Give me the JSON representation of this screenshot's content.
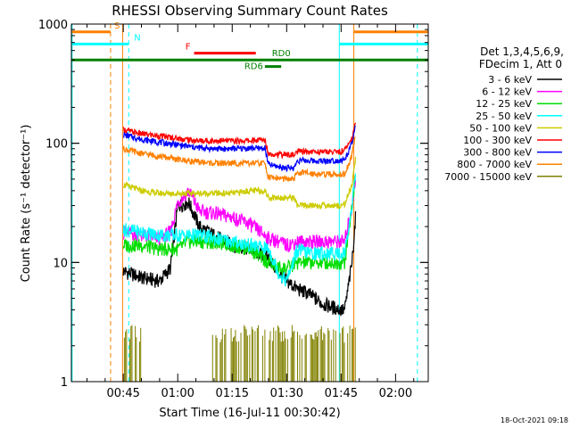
{
  "chart_data": {
    "type": "line",
    "title": "RHESSI Observing Summary Count Rates",
    "xlabel": "Start Time (16-Jul-11 00:30:42)",
    "ylabel": "Count Rate (s⁻¹ detector⁻¹)",
    "yscale": "log",
    "ylim": [
      1,
      1000
    ],
    "xlim_minutes": [
      30.7,
      129.0
    ],
    "x_tick_labels": [
      "00:45",
      "01:00",
      "01:15",
      "01:30",
      "01:45",
      "02:00"
    ],
    "x_tick_minutes": [
      45,
      60,
      75,
      90,
      105,
      120
    ],
    "y_tick_labels": [
      "1",
      "10",
      "100",
      "1000"
    ],
    "y_tick_values": [
      1,
      10,
      100,
      1000
    ],
    "legend_header": [
      "Det 1,3,4,5,6,9,",
      "FDecim 1, Att 0"
    ],
    "timestamp": "18-Oct-2021 09:18",
    "series": [
      {
        "name": "3 - 6 keV",
        "color": "#000000",
        "x": [
          45,
          50,
          55,
          58,
          60,
          63,
          66,
          70,
          75,
          80,
          85,
          88,
          90,
          93,
          96,
          100,
          105,
          106,
          108,
          109
        ],
        "y": [
          8.5,
          7.5,
          7.0,
          9.0,
          30,
          32,
          20,
          17,
          14,
          13,
          11,
          8,
          7,
          6,
          5.5,
          4.5,
          4.0,
          4.0,
          10,
          25
        ]
      },
      {
        "name": "6 - 12 keV",
        "color": "#ff00ff",
        "x": [
          45,
          50,
          55,
          58,
          60,
          63,
          66,
          70,
          75,
          80,
          85,
          88,
          90,
          93,
          96,
          100,
          105,
          106,
          108,
          109
        ],
        "y": [
          18,
          17,
          16,
          18,
          32,
          40,
          27,
          26,
          24,
          21,
          16,
          15,
          14,
          15,
          15,
          15,
          15,
          15,
          30,
          50
        ]
      },
      {
        "name": "12 - 25 keV",
        "color": "#00dd00",
        "x": [
          45,
          50,
          55,
          58,
          60,
          63,
          66,
          70,
          75,
          80,
          85,
          88,
          90,
          93,
          96,
          100,
          105,
          106,
          108,
          109
        ],
        "y": [
          14,
          14,
          13,
          13,
          13,
          15,
          15,
          15,
          14,
          13,
          10,
          9,
          9,
          10,
          10,
          10,
          10,
          10,
          30,
          55
        ]
      },
      {
        "name": "25 - 50 keV",
        "color": "#00ffff",
        "x": [
          45,
          50,
          55,
          58,
          60,
          63,
          66,
          70,
          75,
          80,
          85,
          88,
          90,
          93,
          96,
          100,
          105,
          106,
          108,
          109
        ],
        "y": [
          19,
          18,
          17,
          17,
          17,
          17,
          17,
          16,
          15,
          14,
          13,
          8,
          7,
          13,
          12,
          12,
          12,
          12,
          30,
          58
        ]
      },
      {
        "name": "50 - 100 keV",
        "color": "#cccc00",
        "x": [
          45,
          50,
          55,
          60,
          65,
          70,
          75,
          80,
          84,
          85,
          90,
          92,
          93,
          100,
          105,
          106,
          108,
          109
        ],
        "y": [
          45,
          40,
          38,
          38,
          38,
          38,
          38,
          40,
          40,
          35,
          35,
          35,
          30,
          30,
          30,
          31,
          45,
          75
        ]
      },
      {
        "name": "100 - 300 keV",
        "color": "#ff0000",
        "x": [
          45,
          50,
          55,
          60,
          65,
          70,
          75,
          80,
          84,
          85,
          90,
          92,
          93,
          100,
          105,
          106,
          108,
          109
        ],
        "y": [
          130,
          120,
          115,
          110,
          105,
          105,
          105,
          105,
          107,
          82,
          80,
          80,
          85,
          85,
          85,
          88,
          110,
          150
        ]
      },
      {
        "name": "300 - 800 keV",
        "color": "#0000ff",
        "x": [
          45,
          50,
          55,
          60,
          65,
          70,
          75,
          80,
          84,
          85,
          90,
          92,
          93,
          100,
          105,
          106,
          108,
          109
        ],
        "y": [
          118,
          108,
          102,
          97,
          92,
          90,
          90,
          91,
          91,
          66,
          62,
          62,
          72,
          71,
          72,
          72,
          100,
          140
        ]
      },
      {
        "name": "800 - 7000 keV",
        "color": "#ff8000",
        "x": [
          45,
          50,
          55,
          60,
          65,
          70,
          75,
          80,
          84,
          85,
          90,
          92,
          93,
          100,
          105,
          106,
          108,
          109
        ],
        "y": [
          90,
          82,
          78,
          73,
          70,
          68,
          68,
          68,
          68,
          52,
          50,
          50,
          57,
          55,
          55,
          55,
          80,
          120
        ]
      },
      {
        "name": "7000 - 15000 keV",
        "color": "#808000",
        "x": [
          45,
          46,
          47,
          48,
          49,
          50,
          69,
          72,
          75,
          78,
          80,
          82,
          85,
          86,
          88,
          90,
          92,
          93,
          95,
          97,
          100,
          102,
          104,
          106,
          107,
          108,
          109
        ],
        "y": [
          1.8,
          2.0,
          1.6,
          2.2,
          1.7,
          1.9,
          2.0,
          2.8,
          1.8,
          2.2,
          2.9,
          1.9,
          1.7,
          2.0,
          1.8,
          2.4,
          1.6,
          1.9,
          2.1,
          1.7,
          2.0,
          1.8,
          2.2,
          2.0,
          1.6,
          2.5,
          2.0
        ]
      }
    ],
    "flags": [
      {
        "label": "S",
        "color": "#ff8000",
        "ranges": [
          [
            30.7,
            41.5
          ],
          [
            108.5,
            129.0
          ]
        ],
        "level": 860
      },
      {
        "label": "N",
        "color": "#00ffff",
        "ranges": [
          [
            30.7,
            46.5
          ],
          [
            104.5,
            129.0
          ]
        ],
        "level": 680
      },
      {
        "label": "F",
        "color": "#ff0000",
        "ranges": [
          [
            64.5,
            81.5
          ]
        ],
        "level": 570
      },
      {
        "label": "RD0",
        "color": "#008000",
        "ranges": [
          [
            30.7,
            129.0
          ]
        ],
        "level": 500
      },
      {
        "label": "RD6",
        "color": "#008000",
        "ranges": [
          [
            84.0,
            88.5
          ]
        ],
        "level": 440
      }
    ],
    "vertical_markers": [
      {
        "name": "saa-marker",
        "color": "#ff8000",
        "x": 41.5,
        "style": "dashed"
      },
      {
        "name": "night-marker",
        "color": "#00ffff",
        "x": 46.5,
        "style": "dashed"
      },
      {
        "name": "data-start-marker",
        "color": "#ff8000",
        "x": 44.8,
        "style": "solid"
      },
      {
        "name": "night-end-marker",
        "color": "#00ffff",
        "x": 104.5,
        "style": "solid"
      },
      {
        "name": "saa-start-marker",
        "color": "#ff8000",
        "x": 108.5,
        "style": "solid"
      },
      {
        "name": "night-start-marker",
        "color": "#00ffff",
        "x": 126.0,
        "style": "dashed"
      },
      {
        "name": "orbit-start-marker",
        "color": "#00ffff",
        "x": 30.9,
        "style": "solid"
      }
    ]
  }
}
